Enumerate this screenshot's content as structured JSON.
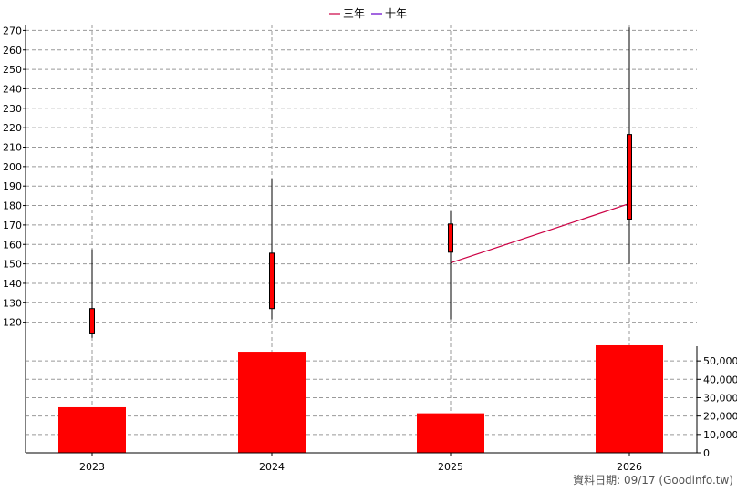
{
  "chart_data": {
    "type": "candlestick",
    "categories": [
      "2023",
      "2024",
      "2025",
      "2026"
    ],
    "legend": [
      {
        "label": "三年",
        "color": "#cc0044"
      },
      {
        "label": "十年",
        "color": "#6600cc"
      }
    ],
    "price_axis": {
      "ylim": [
        110,
        273
      ],
      "ticks": [
        120,
        130,
        140,
        150,
        160,
        170,
        180,
        190,
        200,
        210,
        220,
        230,
        240,
        250,
        260,
        270
      ],
      "tick_labels": [
        "120",
        "130",
        "140",
        "150",
        "160",
        "170",
        "180",
        "190",
        "200",
        "210",
        "220",
        "230",
        "240",
        "250",
        "260",
        "270"
      ]
    },
    "price_series": [
      {
        "category": "2023",
        "open": 114,
        "close": 127,
        "high": 157.5,
        "low": 112
      },
      {
        "category": "2024",
        "open": 127,
        "close": 155.5,
        "high": 193.5,
        "low": 121.5
      },
      {
        "category": "2025",
        "open": 156,
        "close": 170.5,
        "high": 177,
        "low": 121.5
      },
      {
        "category": "2026",
        "open": 173,
        "close": 216.5,
        "high": 271.5,
        "low": 150
      }
    ],
    "three_year_line": {
      "categories": [
        "2025",
        "2026"
      ],
      "values": [
        150.5,
        181
      ]
    },
    "volume_axis": {
      "ylim": [
        0,
        58000
      ],
      "ticks": [
        0,
        10000,
        20000,
        30000,
        40000,
        50000
      ],
      "tick_labels": [
        "0",
        "10,000",
        "20,000",
        "30,000",
        "40,000",
        "50,000"
      ]
    },
    "volume_series": [
      {
        "category": "2023",
        "value": 24800
      },
      {
        "category": "2024",
        "value": 55000
      },
      {
        "category": "2025",
        "value": 21500
      },
      {
        "category": "2026",
        "value": 58500
      }
    ],
    "colors": {
      "candle": "#ff0000",
      "wick": "#000000",
      "volume": "#ff0000",
      "grid": "#999999",
      "three_year": "#cc0044"
    },
    "grid": true
  },
  "footer": {
    "text": "資料日期: 09/17  (Goodinfo.tw)"
  }
}
